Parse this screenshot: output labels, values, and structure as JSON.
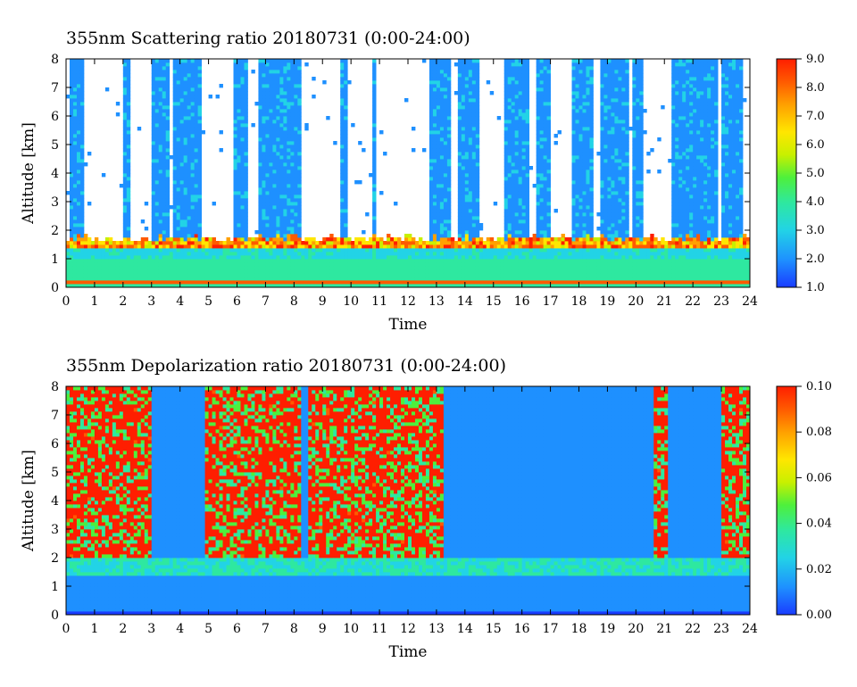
{
  "chart_data": [
    {
      "type": "heatmap",
      "title": "355nm Scattering ratio  20180731 (0:00-24:00)",
      "xlabel": "Time",
      "ylabel": "Altitude [km]",
      "xlim": [
        0,
        24
      ],
      "ylim": [
        0,
        8
      ],
      "x_ticks": [
        "0",
        "1",
        "2",
        "3",
        "4",
        "5",
        "6",
        "7",
        "8",
        "9",
        "10",
        "11",
        "12",
        "13",
        "14",
        "15",
        "16",
        "17",
        "18",
        "19",
        "20",
        "21",
        "22",
        "23",
        "24"
      ],
      "y_ticks": [
        "0",
        "1",
        "2",
        "3",
        "4",
        "5",
        "6",
        "7",
        "8"
      ],
      "colorbar": {
        "range": [
          1.0,
          9.0
        ],
        "ticks": [
          "1.0",
          "2.0",
          "3.0",
          "4.0",
          "5.0",
          "6.0",
          "7.0",
          "8.0",
          "9.0"
        ],
        "colors": [
          "#1a3cff",
          "#1e90ff",
          "#22d3e6",
          "#2ee8a0",
          "#4ef03c",
          "#c8f000",
          "#ffe600",
          "#ffa000",
          "#ff5a00",
          "#ff1e00"
        ]
      },
      "features": {
        "near_ground_layer": {
          "altitude_km": [
            0.3,
            1.0
          ],
          "value": 3.0
        },
        "cloud_base_line_km": 1.6,
        "cloud_columns": [
          [
            0.1,
            0.6
          ],
          [
            2.0,
            2.2
          ],
          [
            3.0,
            3.6
          ],
          [
            3.8,
            4.7
          ],
          [
            5.9,
            6.4
          ],
          [
            6.8,
            8.2
          ],
          [
            9.6,
            9.9
          ],
          [
            10.7,
            10.9
          ],
          [
            11.2,
            11.3
          ],
          [
            12.7,
            13.5
          ],
          [
            13.8,
            14.5
          ],
          [
            15.4,
            16.3
          ],
          [
            16.5,
            17.0
          ],
          [
            17.7,
            18.5
          ],
          [
            18.8,
            19.7
          ],
          [
            19.9,
            20.3
          ],
          [
            21.3,
            22.9
          ],
          [
            23.0,
            23.8
          ]
        ]
      }
    },
    {
      "type": "heatmap",
      "title": "355nm Depolarization ratio  20180731 (0:00-24:00)",
      "xlabel": "Time",
      "ylabel": "Altitude [km]",
      "xlim": [
        0,
        24
      ],
      "ylim": [
        0,
        8
      ],
      "x_ticks": [
        "0",
        "1",
        "2",
        "3",
        "4",
        "5",
        "6",
        "7",
        "8",
        "9",
        "10",
        "11",
        "12",
        "13",
        "14",
        "15",
        "16",
        "17",
        "18",
        "19",
        "20",
        "21",
        "22",
        "23",
        "24"
      ],
      "y_ticks": [
        "0",
        "1",
        "2",
        "3",
        "4",
        "5",
        "6",
        "7",
        "8"
      ],
      "colorbar": {
        "range": [
          0.0,
          0.1
        ],
        "ticks": [
          "0.00",
          "0.02",
          "0.04",
          "0.06",
          "0.08",
          "0.10"
        ],
        "colors": [
          "#1a3cff",
          "#1e90ff",
          "#22d3e6",
          "#2ee8a0",
          "#4ef03c",
          "#c8f000",
          "#ffe600",
          "#ffa000",
          "#ff5a00",
          "#ff1e00"
        ]
      },
      "features": {
        "background_value": 0.012,
        "high_depol_regions": [
          [
            0.0,
            3.0
          ],
          [
            4.9,
            8.2
          ],
          [
            8.5,
            13.2
          ],
          [
            20.6,
            21.1
          ],
          [
            23.0,
            24.0
          ]
        ]
      }
    }
  ]
}
